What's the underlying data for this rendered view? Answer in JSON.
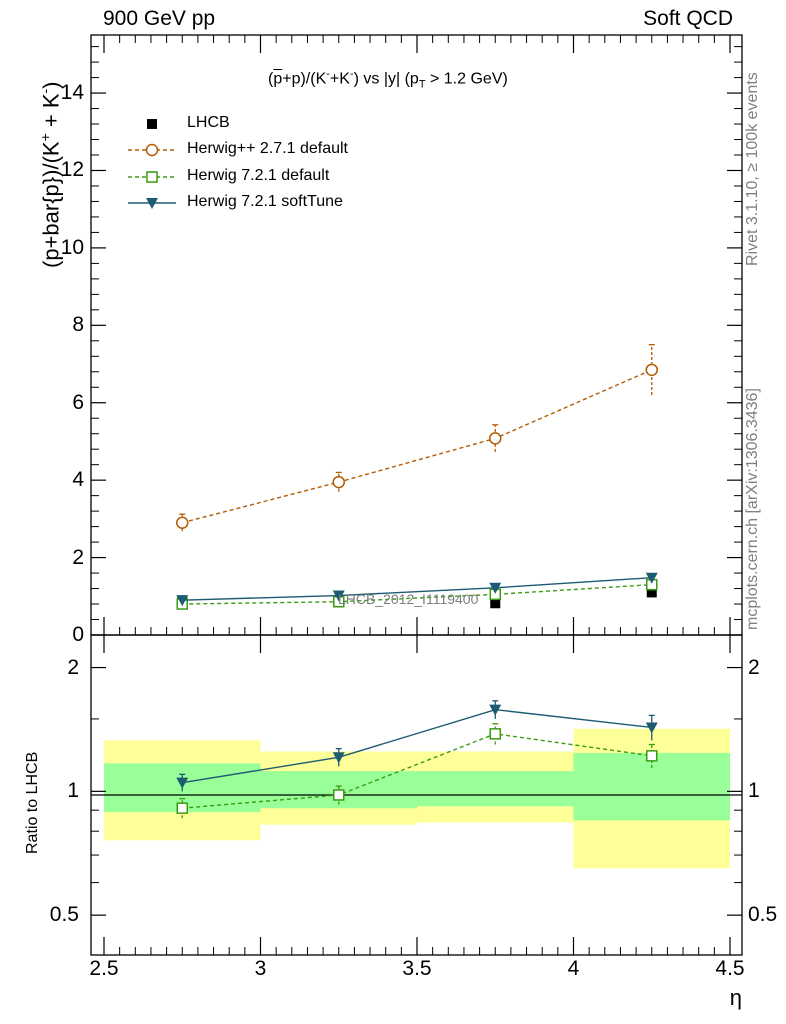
{
  "header": {
    "left": "900 GeV pp",
    "right": "Soft QCD"
  },
  "side_text": {
    "rivet": "Rivet 3.1.10, ≥ 100k events",
    "mcplots": "mcplots.cern.ch [arXiv:1306.3436]"
  },
  "watermark": "LHCB_2012_I1119400",
  "colors": {
    "data": "#000000",
    "herwigpp": "#b35a00",
    "herwig721": "#3c9b14",
    "softtune": "#1d5b73",
    "band_inner": "#99ff99",
    "band_outer": "#ffff99"
  },
  "chart_data": [
    {
      "type": "line",
      "title": "(p̄+p)/(K⁻+K⁻) vs |y| (pT > 1.2 GeV)",
      "title_parts": {
        "p": "p",
        "open": "(",
        "plus_p": "+p)/(K",
        "k1": "-",
        "plus_k": "+K",
        "k2": "-",
        "vs": ") vs |y| (p",
        "T": "T",
        "tail": " > 1.2 GeV)"
      },
      "ylabel": "(p+bar{p})/(K",
      "ylabel_sup1": "+",
      "ylabel_mid": " + K",
      "ylabel_sup2": "-",
      "ylabel_end": ")",
      "xlim": [
        2.5,
        4.5
      ],
      "ylim": [
        0,
        15.5
      ],
      "yticks": [
        0,
        2,
        4,
        6,
        8,
        10,
        12,
        14
      ],
      "ytick_labels": [
        "0",
        "2",
        "4",
        "6",
        "8",
        "10",
        "12",
        "14"
      ],
      "x": [
        2.75,
        3.25,
        3.75,
        4.25
      ],
      "legend_position": "top-left",
      "series": [
        {
          "name": "LHCB",
          "values": [
            0.88,
            0.85,
            0.82,
            1.1
          ],
          "errors": [
            0.04,
            0.04,
            0.05,
            0.06
          ],
          "style": "square-filled"
        },
        {
          "name": "Herwig++ 2.7.1 default",
          "values": [
            2.9,
            3.95,
            5.08,
            6.85
          ],
          "errors": [
            0.22,
            0.25,
            0.35,
            0.65
          ],
          "style": "circle-open-dashed"
        },
        {
          "name": "Herwig 7.2.1 default",
          "values": [
            0.8,
            0.86,
            1.05,
            1.3
          ],
          "errors": [
            0.05,
            0.05,
            0.07,
            0.1
          ],
          "style": "square-open-dashed"
        },
        {
          "name": "Herwig 7.2.1 softTune",
          "values": [
            0.9,
            1.02,
            1.22,
            1.48
          ],
          "errors": [
            0.05,
            0.05,
            0.07,
            0.1
          ],
          "style": "triangle-down-solid"
        }
      ]
    },
    {
      "type": "line",
      "ylabel": "Ratio to LHCB",
      "xlabel": "η",
      "xlim": [
        2.5,
        4.5
      ],
      "ylim": [
        0.4,
        2.4
      ],
      "log_y": true,
      "xticks": [
        2.5,
        3,
        3.5,
        4,
        4.5
      ],
      "xtick_labels": [
        "2.5",
        "3",
        "3.5",
        "4",
        "4.5"
      ],
      "yticks": [
        0.5,
        1,
        2
      ],
      "ytick_labels": [
        "0.5",
        "1",
        "2"
      ],
      "bands": [
        {
          "x0": 2.5,
          "x1": 3.0,
          "inner": [
            0.89,
            1.17
          ],
          "outer": [
            0.76,
            1.33
          ]
        },
        {
          "x0": 3.0,
          "x1": 3.5,
          "inner": [
            0.91,
            1.12
          ],
          "outer": [
            0.83,
            1.25
          ]
        },
        {
          "x0": 3.5,
          "x1": 4.0,
          "inner": [
            0.92,
            1.12
          ],
          "outer": [
            0.84,
            1.25
          ]
        },
        {
          "x0": 4.0,
          "x1": 4.5,
          "inner": [
            0.85,
            1.24
          ],
          "outer": [
            0.65,
            1.42
          ]
        }
      ],
      "x": [
        2.75,
        3.25,
        3.75,
        4.25
      ],
      "series": [
        {
          "name": "Herwig 7.2.1 default",
          "values": [
            0.91,
            0.98,
            1.38,
            1.22
          ],
          "errors": [
            0.05,
            0.05,
            0.08,
            0.08
          ],
          "style": "square-open-dashed"
        },
        {
          "name": "Herwig 7.2.1 softTune",
          "values": [
            1.05,
            1.21,
            1.58,
            1.43
          ],
          "errors": [
            0.05,
            0.06,
            0.08,
            0.1
          ],
          "style": "triangle-down-solid"
        }
      ]
    }
  ]
}
